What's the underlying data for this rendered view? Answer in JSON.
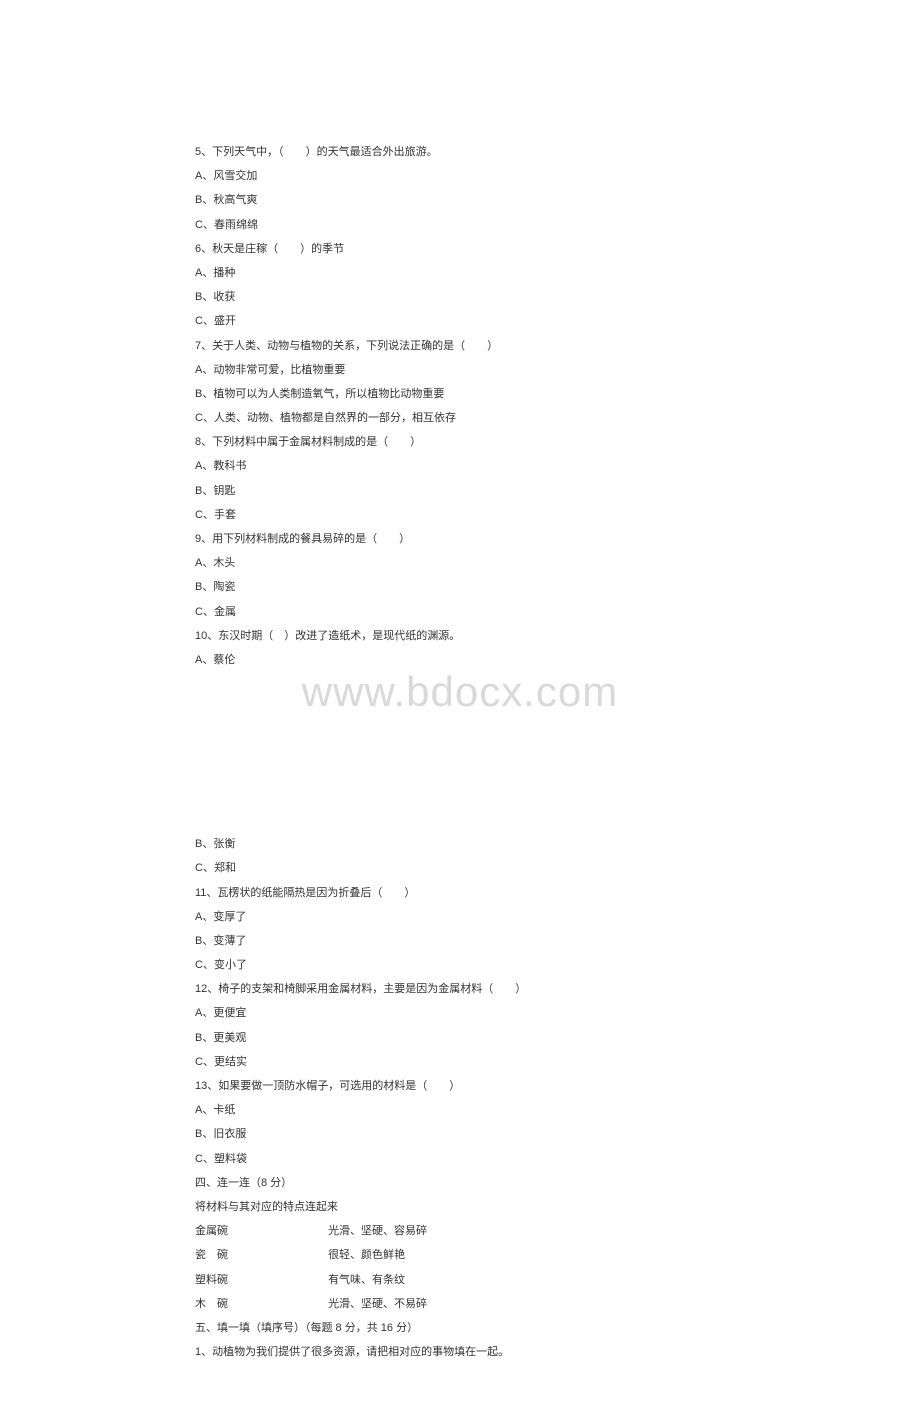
{
  "watermark": "www.bdocx.com",
  "page1": {
    "q5": {
      "stem": "5、下列天气中，（　　）的天气最适合外出旅游。",
      "a": "A、风雪交加",
      "b": "B、秋高气爽",
      "c": "C、春雨绵绵"
    },
    "q6": {
      "stem": "6、秋天是庄稼（　　）的季节",
      "a": "A、播种",
      "b": "B、收获",
      "c": "C、盛开"
    },
    "q7": {
      "stem": "7、关于人类、动物与植物的关系，下列说法正确的是（　　）",
      "a": "A、动物非常可爱，比植物重要",
      "b": "B、植物可以为人类制造氧气，所以植物比动物重要",
      "c": "C、人类、动物、植物都是自然界的一部分，相互依存"
    },
    "q8": {
      "stem": "8、下列材料中属于金属材料制成的是（　　）",
      "a": "A、教科书",
      "b": "B、钥匙",
      "c": "C、手套"
    },
    "q9": {
      "stem": "9、用下列材料制成的餐具易碎的是（　　）",
      "a": "A、木头",
      "b": "B、陶瓷",
      "c": "C、金属"
    },
    "q10": {
      "stem": "10、东汉时期（　）改进了造纸术，是现代纸的渊源。",
      "a": "A、蔡伦"
    }
  },
  "page2": {
    "q10": {
      "b": "B、张衡",
      "c": "C、郑和"
    },
    "q11": {
      "stem": "11、瓦楞状的纸能隔热是因为折叠后（　　）",
      "a": "A、变厚了",
      "b": "B、变薄了",
      "c": "C、变小了"
    },
    "q12": {
      "stem": "12、椅子的支架和椅脚采用金属材料，主要是因为金属材料（　　）",
      "a": "A、更便宜",
      "b": "B、更美观",
      "c": "C、更结实"
    },
    "q13": {
      "stem": "13、如果要做一顶防水帽子，可选用的材料是（　　）",
      "a": "A、卡纸",
      "b": "B、旧衣服",
      "c": "C、塑料袋"
    },
    "section4": {
      "title": "四、连一连（8 分）",
      "instruction": "将材料与其对应的特点连起来",
      "rows": [
        {
          "left": "金属碗",
          "right": "光滑、坚硬、容易碎"
        },
        {
          "left": "瓷　碗",
          "right": "很轻、颜色鲜艳"
        },
        {
          "left": "塑料碗",
          "right": "有气味、有条纹"
        },
        {
          "left": "木　碗",
          "right": "光滑、坚硬、不易碎"
        }
      ]
    },
    "section5": {
      "title": "五、填一填（填序号）（每题 8 分，共 16 分）",
      "q1": "1、动植物为我们提供了很多资源，请把相对应的事物填在一起。"
    }
  }
}
